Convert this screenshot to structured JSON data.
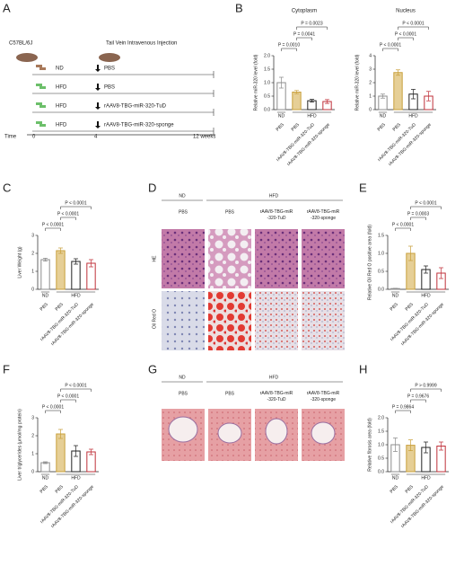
{
  "panel_labels": [
    "A",
    "B",
    "C",
    "D",
    "E",
    "F",
    "G",
    "H"
  ],
  "diagram": {
    "strain": "C57BL/6J",
    "injection": "Tail Vein Intravenous Injection",
    "rows": [
      [
        "ND",
        "PBS"
      ],
      [
        "HFD",
        "PBS"
      ],
      [
        "HFD",
        "rAAV8-TBG-miR-320-TuD"
      ],
      [
        "HFD",
        "rAAV8-TBG-miR-320-sponge"
      ]
    ],
    "time": [
      "Time",
      "0",
      "4",
      "12 weeks"
    ]
  },
  "images_d": {
    "groups": [
      "ND",
      "HFD"
    ],
    "columns": [
      "PBS",
      "PBS",
      "rAAV8-TBG-miR -320-TuD",
      "rAAV8-TBG-miR -320-sponge"
    ],
    "rows": [
      "HE",
      "Oil Red O"
    ]
  },
  "images_g": {
    "groups": [
      "ND",
      "HFD"
    ],
    "columns": [
      "PBS",
      "PBS",
      "rAAV8-TBG-miR -320-TuD",
      "rAAV8-TBG-miR -320-sponge"
    ]
  },
  "chart_data": [
    {
      "type": "bar",
      "title": "Cytoplasm",
      "ylabel": "Relative miR-320 level (fold)",
      "categories": [
        "PBS",
        "PBS",
        "rAAV8-TBG-miR-320-TuD",
        "rAAV8-TBG-miR-320-sponge"
      ],
      "groups": [
        "ND",
        "HFD"
      ],
      "values": [
        1.0,
        0.65,
        0.33,
        0.3
      ],
      "errors": [
        0.2,
        0.06,
        0.05,
        0.07
      ],
      "colors": [
        "#8c8c8c",
        "#c9a03c",
        "#222222",
        "#c0303a"
      ],
      "ylim": [
        0,
        2
      ],
      "yticks": [
        {
          "value": 0,
          "label": "0.0"
        },
        0.5,
        {
          "value": 1,
          "label": "1.0"
        },
        1.5,
        {
          "value": 2,
          "label": "2.0"
        }
      ],
      "p_values": [
        "P = 0.0010",
        "P = 0.0041",
        "P = 0.0023"
      ]
    },
    {
      "type": "bar",
      "title": "Nucleus",
      "ylabel": "Relative miR-320 level (fold)",
      "categories": [
        "PBS",
        "PBS",
        "rAAV8-TBG-miR-320-TuD",
        "rAAV8-TBG-miR-320-sponge"
      ],
      "groups": [
        "ND",
        "HFD"
      ],
      "values": [
        1.0,
        2.75,
        1.15,
        1.0
      ],
      "errors": [
        0.15,
        0.2,
        0.35,
        0.35
      ],
      "colors": [
        "#8c8c8c",
        "#c9a03c",
        "#222222",
        "#c0303a"
      ],
      "ylim": [
        0,
        4
      ],
      "yticks": [
        0,
        1,
        2,
        3,
        4
      ],
      "p_values": [
        "P < 0.0001",
        "P < 0.0001",
        "P < 0.0001"
      ]
    },
    {
      "type": "bar",
      "ylabel": "Liver Weight (g)",
      "categories": [
        "PBS",
        "PBS",
        "rAAV8-TBG-miR-320-TuD",
        "rAAV8-TBG-miR-320-sponge"
      ],
      "groups": [
        "ND",
        "HFD"
      ],
      "values": [
        1.65,
        2.15,
        1.55,
        1.45
      ],
      "errors": [
        0.08,
        0.15,
        0.15,
        0.2
      ],
      "colors": [
        "#8c8c8c",
        "#c9a03c",
        "#222222",
        "#c0303a"
      ],
      "ylim": [
        0,
        3
      ],
      "yticks": [
        0,
        1,
        2,
        3
      ],
      "p_values": [
        "P < 0.0001",
        "P < 0.0001",
        "P < 0.0001"
      ]
    },
    {
      "type": "bar",
      "ylabel": "Relative Oil Red O positive area (fold)",
      "categories": [
        "PBS",
        "PBS",
        "rAAV8-TBG-miR-320-TuD",
        "rAAV8-TBG-miR-320-sponge"
      ],
      "groups": [
        "ND",
        "HFD"
      ],
      "values": [
        0.02,
        1.0,
        0.55,
        0.45
      ],
      "errors": [
        0.01,
        0.2,
        0.1,
        0.15
      ],
      "colors": [
        "#8c8c8c",
        "#c9a03c",
        "#222222",
        "#c0303a"
      ],
      "ylim": [
        0,
        1.5
      ],
      "yticks": [
        {
          "value": 0,
          "label": "0.0"
        },
        0.5,
        {
          "value": 1,
          "label": "1.0"
        },
        1.5
      ],
      "p_values": [
        "P < 0.0001",
        "P = 0.0003",
        "P < 0.0001"
      ]
    },
    {
      "type": "bar",
      "ylabel": "Liver triglycerides (μmol/mg protein)",
      "categories": [
        "PBS",
        "PBS",
        "rAAV8-TBG-miR-320-TuD",
        "rAAV8-TBG-miR-320-sponge"
      ],
      "groups": [
        "ND",
        "HFD"
      ],
      "values": [
        0.5,
        2.1,
        1.15,
        1.1
      ],
      "errors": [
        0.05,
        0.25,
        0.3,
        0.15
      ],
      "colors": [
        "#8c8c8c",
        "#c9a03c",
        "#222222",
        "#c0303a"
      ],
      "ylim": [
        0,
        3
      ],
      "yticks": [
        0,
        1,
        2,
        3
      ],
      "p_values": [
        "P < 0.0001",
        "P < 0.0001",
        "P < 0.0001"
      ]
    },
    {
      "type": "bar",
      "ylabel": "Relative fibrosis area (fold)",
      "categories": [
        "PBS",
        "PBS",
        "rAAV8-TBG-miR-320-TuD",
        "rAAV8-TBG-miR-320-sponge"
      ],
      "groups": [
        "ND",
        "HFD"
      ],
      "values": [
        1.0,
        0.98,
        0.9,
        0.95
      ],
      "errors": [
        0.25,
        0.2,
        0.2,
        0.15
      ],
      "colors": [
        "#8c8c8c",
        "#c9a03c",
        "#222222",
        "#c0303a"
      ],
      "ylim": [
        0,
        2
      ],
      "yticks": [
        {
          "value": 0,
          "label": "0.0"
        },
        0.5,
        {
          "value": 1,
          "label": "1.0"
        },
        1.5,
        {
          "value": 2,
          "label": "2.0"
        }
      ],
      "p_values": [
        "P = 0.9864",
        "P = 0.9676",
        "P > 0.9999"
      ]
    }
  ]
}
